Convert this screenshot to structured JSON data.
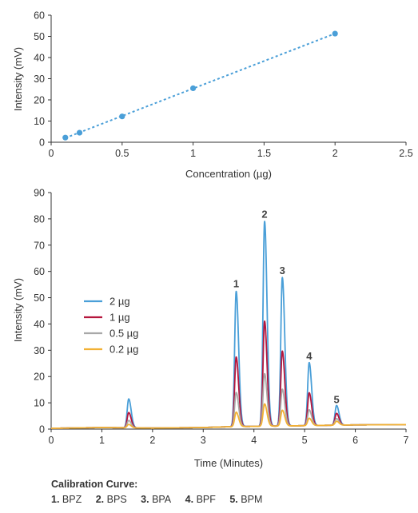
{
  "chart_data": [
    {
      "type": "scatter",
      "title": "",
      "xlabel": "Concentration (µg)",
      "ylabel": "Intensity (mV)",
      "xlim": [
        0,
        2.5
      ],
      "ylim": [
        0,
        60
      ],
      "xticks": [
        "0",
        "0.5",
        "1",
        "1.5",
        "2",
        "2.5"
      ],
      "yticks": [
        "0",
        "10",
        "20",
        "30",
        "40",
        "50",
        "60"
      ],
      "trendline": "dotted linear",
      "color": "#4a9fd8",
      "points": [
        {
          "x": 0.1,
          "y": 2.2
        },
        {
          "x": 0.2,
          "y": 4.5
        },
        {
          "x": 0.5,
          "y": 12.2
        },
        {
          "x": 1.0,
          "y": 25.5
        },
        {
          "x": 2.0,
          "y": 51.3
        }
      ]
    },
    {
      "type": "line",
      "title": "",
      "xlabel": "Time (Minutes)",
      "ylabel": "Intensity (mV)",
      "xlim": [
        0,
        7
      ],
      "ylim": [
        0,
        90
      ],
      "xticks": [
        "0",
        "1",
        "2",
        "3",
        "4",
        "5",
        "6",
        "7"
      ],
      "yticks": [
        "0",
        "10",
        "20",
        "30",
        "40",
        "50",
        "60",
        "70",
        "80",
        "90"
      ],
      "legend_position": "left-middle",
      "baseline": [
        [
          0,
          0.3
        ],
        [
          1,
          0.6
        ],
        [
          2,
          0.4
        ],
        [
          3,
          0.6
        ],
        [
          3.5,
          0.9
        ],
        [
          5,
          1.3
        ],
        [
          6,
          1.6
        ],
        [
          7,
          1.7
        ]
      ],
      "series": [
        {
          "name": "2 µg",
          "color": "#4a9fd8",
          "peaks": [
            {
              "t": 1.53,
              "h": 11.0
            },
            {
              "t": 3.65,
              "h": 51.5
            },
            {
              "t": 4.21,
              "h": 78.0
            },
            {
              "t": 4.56,
              "h": 56.5
            },
            {
              "t": 5.09,
              "h": 24.0
            },
            {
              "t": 5.63,
              "h": 7.5
            }
          ]
        },
        {
          "name": "1 µg",
          "color": "#b5163d",
          "peaks": [
            {
              "t": 1.53,
              "h": 5.8
            },
            {
              "t": 3.65,
              "h": 26.5
            },
            {
              "t": 4.21,
              "h": 40.0
            },
            {
              "t": 4.56,
              "h": 28.5
            },
            {
              "t": 5.09,
              "h": 12.5
            },
            {
              "t": 5.63,
              "h": 4.5
            }
          ]
        },
        {
          "name": "0.5 µg",
          "color": "#a8a8a8",
          "peaks": [
            {
              "t": 1.53,
              "h": 2.8
            },
            {
              "t": 3.65,
              "h": 13.0
            },
            {
              "t": 4.21,
              "h": 20.0
            },
            {
              "t": 4.56,
              "h": 14.0
            },
            {
              "t": 5.09,
              "h": 6.0
            },
            {
              "t": 5.63,
              "h": 2.5
            }
          ]
        },
        {
          "name": "0.2 µg",
          "color": "#f2b134",
          "peaks": [
            {
              "t": 1.53,
              "h": 1.3
            },
            {
              "t": 3.65,
              "h": 5.5
            },
            {
              "t": 4.21,
              "h": 8.5
            },
            {
              "t": 4.56,
              "h": 6.0
            },
            {
              "t": 5.09,
              "h": 2.8
            },
            {
              "t": 5.63,
              "h": 1.5
            }
          ]
        }
      ],
      "peak_labels": [
        {
          "text": "1",
          "x": 3.65,
          "y": 51.5
        },
        {
          "text": "2",
          "x": 4.21,
          "y": 78.0
        },
        {
          "text": "3",
          "x": 4.56,
          "y": 56.5
        },
        {
          "text": "4",
          "x": 5.09,
          "y": 24.0
        },
        {
          "text": "5",
          "x": 5.63,
          "y": 7.5
        }
      ]
    }
  ],
  "caption": {
    "title": "Calibration Curve:",
    "items": [
      {
        "num": "1.",
        "name": "BPZ"
      },
      {
        "num": "2.",
        "name": "BPS"
      },
      {
        "num": "3.",
        "name": "BPA"
      },
      {
        "num": "4.",
        "name": "BPF"
      },
      {
        "num": "5.",
        "name": "BPM"
      }
    ]
  }
}
